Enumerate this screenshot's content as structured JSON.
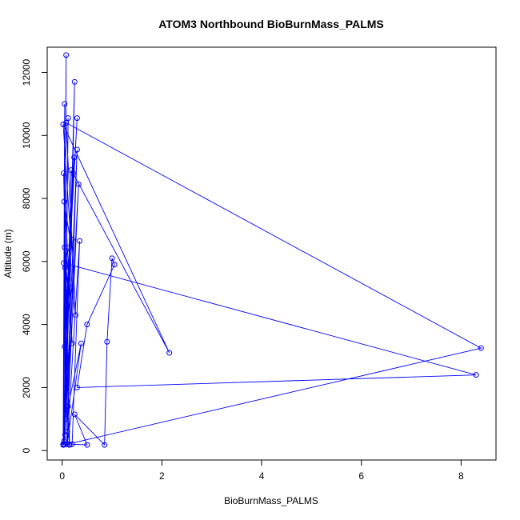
{
  "chart_data": {
    "type": "line",
    "title": "ATOM3 Northbound BioBurnMass_PALMS",
    "xlabel": "BioBurnMass_PALMS",
    "ylabel": "Altitude (m)",
    "xlim": [
      -0.3,
      8.7
    ],
    "ylim": [
      -300,
      12800
    ],
    "xticks": [
      0,
      2,
      4,
      6,
      8
    ],
    "yticks": [
      0,
      2000,
      4000,
      6000,
      8000,
      10000,
      12000
    ],
    "grid": false,
    "colors": {
      "series": "#0000ff",
      "axis": "#000000"
    },
    "series": [
      {
        "x": [
          0.02,
          0.05,
          0.03,
          0.08,
          0.05,
          0.12,
          0.04,
          0.18,
          0.06,
          0.25,
          0.1,
          0.3,
          0.07,
          0.33,
          0.12,
          0.38,
          0.1,
          0.35,
          0.2,
          0.5,
          0.25,
          0.85,
          0.9,
          1.0,
          1.05,
          0.5,
          0.3,
          8.3,
          0.03,
          0.2,
          0.05,
          0.3,
          0.08,
          0.24,
          0.12,
          0.22,
          2.15,
          0.02,
          0.18,
          0.04,
          0.15,
          0.06,
          0.1,
          8.4,
          0.08,
          0.27,
          0.05,
          0.2,
          0.03,
          0.14,
          0.02
        ],
        "y": [
          180,
          11000,
          180,
          12550,
          200,
          10550,
          300,
          8900,
          500,
          11700,
          600,
          9550,
          1000,
          8450,
          1400,
          3400,
          200,
          6650,
          200,
          180,
          1150,
          180,
          3450,
          6100,
          5900,
          4000,
          2000,
          2400,
          5950,
          6700,
          3300,
          10550,
          4500,
          9300,
          5000,
          8800,
          3100,
          10350,
          6500,
          7900,
          180,
          5800,
          200,
          3250,
          10400,
          4300,
          6450,
          3400,
          8800,
          180,
          200
        ]
      }
    ]
  }
}
